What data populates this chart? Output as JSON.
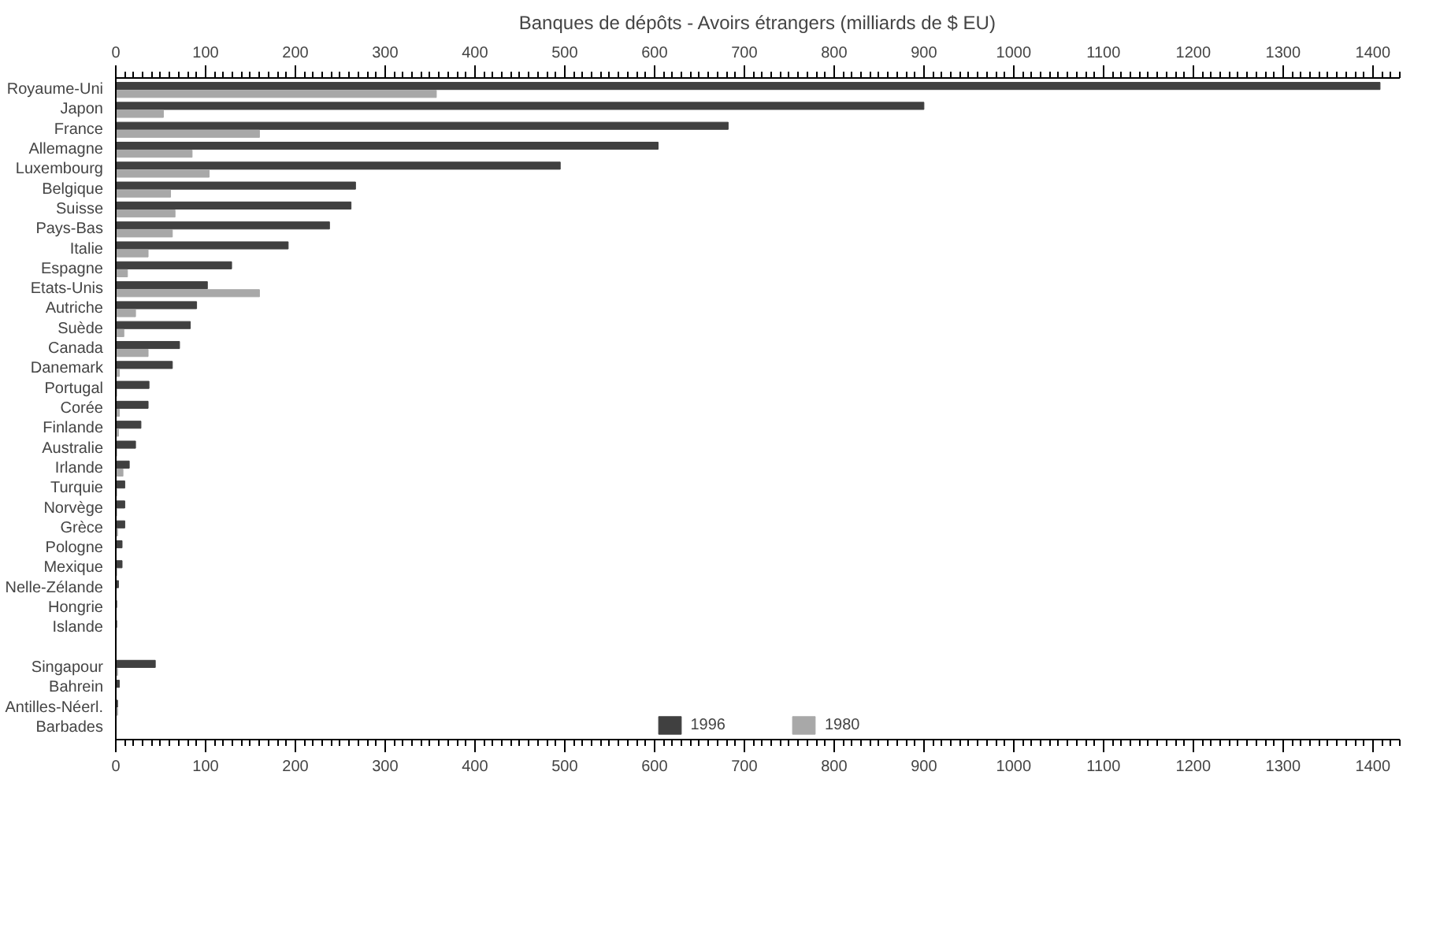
{
  "chart_data": {
    "type": "bar",
    "orientation": "horizontal",
    "title": "Banques de dépôts - Avoirs étrangers (milliards de $ EU)",
    "categories": [
      "Royaume-Uni",
      "Japon",
      "France",
      "Allemagne",
      "Luxembourg",
      "Belgique",
      "Suisse",
      "Pays-Bas",
      "Italie",
      "Espagne",
      "Etats-Unis",
      "Autriche",
      "Suède",
      "Canada",
      "Danemark",
      "Portugal",
      "Corée",
      "Finlande",
      "Australie",
      "Irlande",
      "Turquie",
      "Norvège",
      "Grèce",
      "Pologne",
      "Mexique",
      "Nelle-Zélande",
      "Hongrie",
      "Islande",
      null,
      "Singapour",
      "Bahrein",
      "Antilles-Néerl.",
      "Barbades"
    ],
    "series": [
      {
        "name": "1996",
        "color": "#404040",
        "values": [
          1408,
          900,
          682,
          604,
          495,
          267,
          262,
          238,
          192,
          129,
          102,
          90,
          83,
          71,
          63,
          37,
          36,
          28,
          22,
          15,
          10,
          10,
          10,
          7,
          7,
          3,
          1,
          1,
          null,
          44,
          4,
          2,
          0
        ]
      },
      {
        "name": "1980",
        "color": "#a8a8a8",
        "values": [
          357,
          53,
          160,
          85,
          104,
          61,
          66,
          63,
          36,
          13,
          160,
          22,
          9,
          36,
          4,
          1,
          4,
          3,
          1,
          8,
          1,
          1,
          2,
          0,
          1,
          0,
          0,
          0,
          null,
          2,
          0,
          2,
          0
        ]
      }
    ],
    "xlim": [
      0,
      1430
    ],
    "xticks": [
      0,
      100,
      200,
      300,
      400,
      500,
      600,
      700,
      800,
      900,
      1000,
      1100,
      1200,
      1300,
      1400
    ],
    "x2lim": [
      0,
      1430
    ],
    "x2ticks": [
      0,
      100,
      200,
      300,
      400,
      500,
      600,
      700,
      800,
      900,
      1000,
      1100,
      1200,
      1300,
      1400
    ],
    "grid": false,
    "legend": "bottom"
  }
}
